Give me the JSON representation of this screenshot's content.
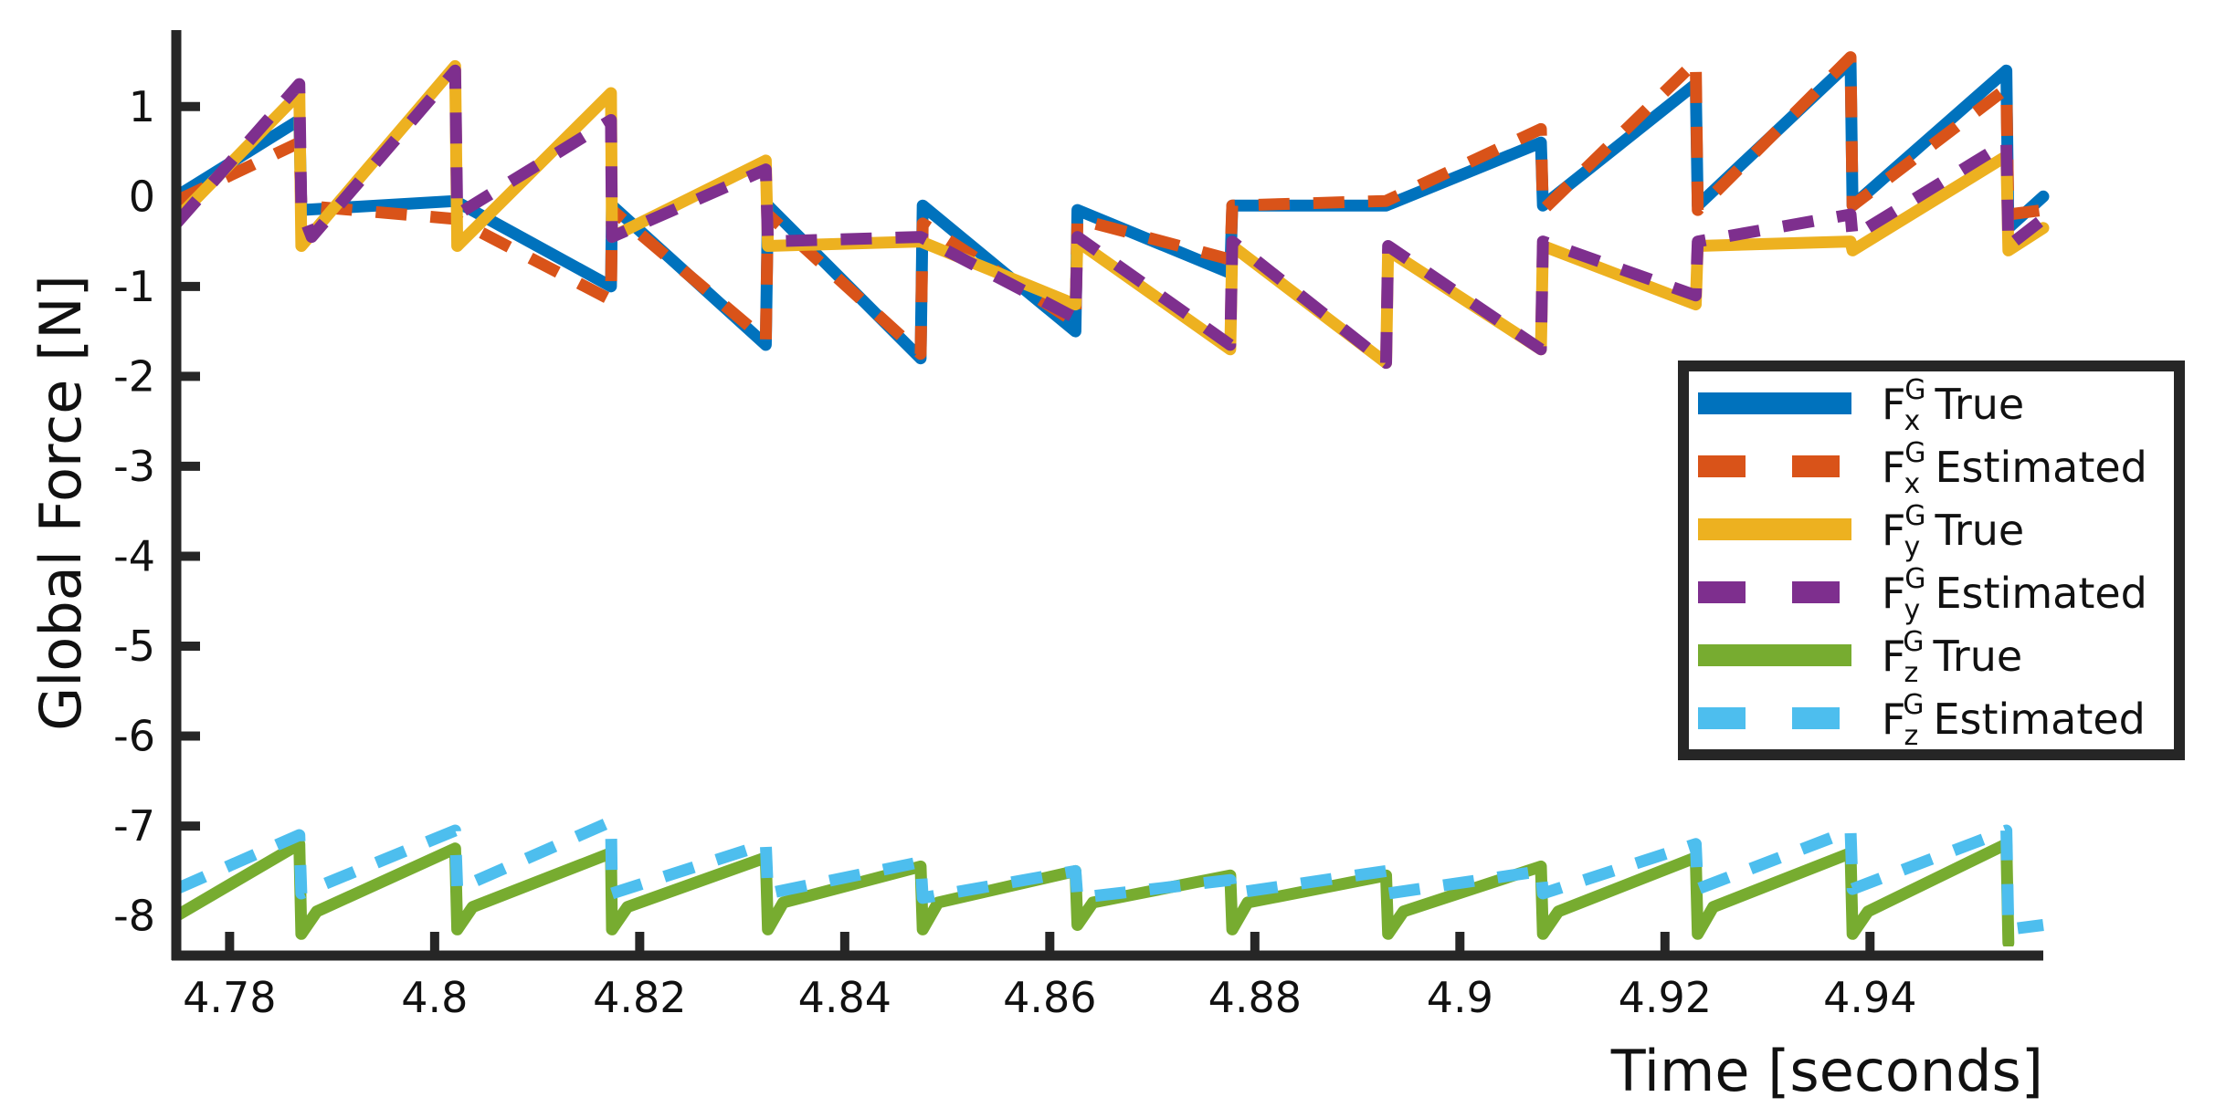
{
  "chart_data": {
    "type": "line",
    "title": "",
    "xlabel": "Time [seconds]",
    "ylabel": "Global Force [N]",
    "xlim": [
      4.7748,
      4.9569
    ],
    "ylim": [
      -8.44,
      1.85
    ],
    "grid": false,
    "legend_position": "right, inside (middle)",
    "x_ticks": [
      4.78,
      4.8,
      4.82,
      4.84,
      4.86,
      4.88,
      4.9,
      4.92,
      4.94
    ],
    "x_tick_labels": [
      "4.78",
      "4.8",
      "4.82",
      "4.84",
      "4.86",
      "4.88",
      "4.9",
      "4.92",
      "4.94"
    ],
    "y_ticks": [
      1,
      0,
      -1,
      -2,
      -3,
      -4,
      -5,
      -6,
      -7,
      -8
    ],
    "y_tick_labels": [
      "1",
      "0",
      "-1",
      "-2",
      "-3",
      "-4",
      "-5",
      "-6",
      "-7",
      "-8"
    ],
    "series": [
      {
        "name": "F_x^G True",
        "legend_main": "F",
        "legend_sup": "G",
        "legend_sub": "x",
        "legend_suffix": "True",
        "color": "#0072BD",
        "style": "solid",
        "points": [
          [
            4.7748,
            0.0
          ],
          [
            4.7868,
            0.85
          ],
          [
            4.787,
            -0.15
          ],
          [
            4.802,
            -0.05
          ],
          [
            4.8172,
            -1.0
          ],
          [
            4.8173,
            -0.1
          ],
          [
            4.8323,
            -1.65
          ],
          [
            4.8325,
            -0.1
          ],
          [
            4.8474,
            -1.8
          ],
          [
            4.8476,
            -0.1
          ],
          [
            4.8625,
            -1.5
          ],
          [
            4.8627,
            -0.15
          ],
          [
            4.8776,
            -0.85
          ],
          [
            4.8778,
            -0.1
          ],
          [
            4.8928,
            -0.1
          ],
          [
            4.9079,
            0.6
          ],
          [
            4.9081,
            -0.1
          ],
          [
            4.923,
            1.25
          ],
          [
            4.9232,
            -0.1
          ],
          [
            4.9381,
            1.5
          ],
          [
            4.9383,
            -0.1
          ],
          [
            4.9533,
            1.4
          ],
          [
            4.9535,
            -0.35
          ],
          [
            4.9569,
            0.0
          ]
        ]
      },
      {
        "name": "F_x^G Estimated",
        "legend_main": "F",
        "legend_sup": "G",
        "legend_sub": "x",
        "legend_suffix": "Estimated",
        "color": "#D95319",
        "style": "dashed",
        "points": [
          [
            4.7748,
            -0.05
          ],
          [
            4.7868,
            0.6
          ],
          [
            4.787,
            -0.1
          ],
          [
            4.802,
            -0.25
          ],
          [
            4.8172,
            -1.15
          ],
          [
            4.8173,
            -0.15
          ],
          [
            4.8323,
            -1.6
          ],
          [
            4.8325,
            -0.2
          ],
          [
            4.8474,
            -1.75
          ],
          [
            4.8476,
            -0.3
          ],
          [
            4.8625,
            -1.4
          ],
          [
            4.8627,
            -0.25
          ],
          [
            4.8776,
            -0.7
          ],
          [
            4.8778,
            -0.1
          ],
          [
            4.8928,
            -0.05
          ],
          [
            4.9079,
            0.75
          ],
          [
            4.9081,
            -0.15
          ],
          [
            4.923,
            1.5
          ],
          [
            4.9232,
            -0.15
          ],
          [
            4.9381,
            1.55
          ],
          [
            4.9383,
            -0.1
          ],
          [
            4.9533,
            1.2
          ],
          [
            4.9535,
            -0.2
          ],
          [
            4.9569,
            -0.15
          ]
        ]
      },
      {
        "name": "F_y^G True",
        "legend_main": "F",
        "legend_sup": "G",
        "legend_sub": "y",
        "legend_suffix": "True",
        "color": "#EDB120",
        "style": "solid",
        "points": [
          [
            4.7748,
            -0.25
          ],
          [
            4.7868,
            1.15
          ],
          [
            4.787,
            -0.55
          ],
          [
            4.802,
            1.45
          ],
          [
            4.8022,
            -0.55
          ],
          [
            4.8172,
            1.15
          ],
          [
            4.8173,
            -0.45
          ],
          [
            4.8323,
            0.4
          ],
          [
            4.8325,
            -0.55
          ],
          [
            4.8474,
            -0.5
          ],
          [
            4.8625,
            -1.2
          ],
          [
            4.8627,
            -0.5
          ],
          [
            4.8776,
            -1.7
          ],
          [
            4.8778,
            -0.55
          ],
          [
            4.8928,
            -1.85
          ],
          [
            4.893,
            -0.6
          ],
          [
            4.9079,
            -1.7
          ],
          [
            4.9081,
            -0.55
          ],
          [
            4.923,
            -1.2
          ],
          [
            4.9232,
            -0.55
          ],
          [
            4.9381,
            -0.5
          ],
          [
            4.9383,
            -0.6
          ],
          [
            4.9533,
            0.45
          ],
          [
            4.9535,
            -0.6
          ],
          [
            4.9569,
            -0.35
          ]
        ]
      },
      {
        "name": "F_y^G Estimated",
        "legend_main": "F",
        "legend_sup": "G",
        "legend_sub": "y",
        "legend_suffix": "Estimated",
        "color": "#7E2F8E",
        "style": "dashed",
        "points": [
          [
            4.7748,
            -0.3
          ],
          [
            4.7868,
            1.25
          ],
          [
            4.787,
            -0.15
          ],
          [
            4.788,
            -0.45
          ],
          [
            4.802,
            1.4
          ],
          [
            4.8022,
            -0.2
          ],
          [
            4.8172,
            0.85
          ],
          [
            4.8173,
            -0.45
          ],
          [
            4.8323,
            0.3
          ],
          [
            4.8325,
            -0.5
          ],
          [
            4.8474,
            -0.45
          ],
          [
            4.8625,
            -1.35
          ],
          [
            4.8627,
            -0.45
          ],
          [
            4.8776,
            -1.65
          ],
          [
            4.8778,
            -0.5
          ],
          [
            4.8928,
            -1.85
          ],
          [
            4.893,
            -0.55
          ],
          [
            4.9079,
            -1.7
          ],
          [
            4.9081,
            -0.5
          ],
          [
            4.923,
            -1.1
          ],
          [
            4.9232,
            -0.5
          ],
          [
            4.9381,
            -0.2
          ],
          [
            4.9383,
            -0.45
          ],
          [
            4.9533,
            0.6
          ],
          [
            4.9535,
            -0.55
          ],
          [
            4.9569,
            -0.25
          ]
        ]
      },
      {
        "name": "F_z^G True",
        "legend_main": "F",
        "legend_sup": "G",
        "legend_sub": "z",
        "legend_suffix": "True",
        "color": "#77AC30",
        "style": "solid",
        "points": [
          [
            4.7748,
            -8.0
          ],
          [
            4.7868,
            -7.2
          ],
          [
            4.787,
            -8.2
          ],
          [
            4.7885,
            -7.95
          ],
          [
            4.802,
            -7.25
          ],
          [
            4.8022,
            -8.15
          ],
          [
            4.8037,
            -7.9
          ],
          [
            4.8172,
            -7.3
          ],
          [
            4.8173,
            -8.15
          ],
          [
            4.8188,
            -7.9
          ],
          [
            4.8323,
            -7.35
          ],
          [
            4.8325,
            -8.15
          ],
          [
            4.834,
            -7.85
          ],
          [
            4.8474,
            -7.45
          ],
          [
            4.8476,
            -8.15
          ],
          [
            4.8491,
            -7.85
          ],
          [
            4.8625,
            -7.5
          ],
          [
            4.8627,
            -8.1
          ],
          [
            4.8642,
            -7.85
          ],
          [
            4.8776,
            -7.55
          ],
          [
            4.8778,
            -8.15
          ],
          [
            4.8793,
            -7.85
          ],
          [
            4.8928,
            -7.55
          ],
          [
            4.893,
            -8.2
          ],
          [
            4.8945,
            -7.95
          ],
          [
            4.9079,
            -7.45
          ],
          [
            4.9081,
            -8.2
          ],
          [
            4.9096,
            -7.95
          ],
          [
            4.923,
            -7.35
          ],
          [
            4.9232,
            -8.2
          ],
          [
            4.9247,
            -7.9
          ],
          [
            4.9381,
            -7.3
          ],
          [
            4.9383,
            -8.2
          ],
          [
            4.9398,
            -7.95
          ],
          [
            4.9533,
            -7.2
          ],
          [
            4.9535,
            -8.3
          ]
        ]
      },
      {
        "name": "F_z^G Estimated",
        "legend_main": "F",
        "legend_sup": "G",
        "legend_sub": "z",
        "legend_suffix": "Estimated",
        "color": "#4DBEEE",
        "style": "dashed",
        "points": [
          [
            4.7748,
            -7.7
          ],
          [
            4.7868,
            -7.1
          ],
          [
            4.787,
            -7.75
          ],
          [
            4.802,
            -7.05
          ],
          [
            4.8022,
            -7.7
          ],
          [
            4.8172,
            -6.95
          ],
          [
            4.8173,
            -7.75
          ],
          [
            4.8323,
            -7.2
          ],
          [
            4.8325,
            -7.75
          ],
          [
            4.8474,
            -7.4
          ],
          [
            4.8476,
            -7.8
          ],
          [
            4.8625,
            -7.5
          ],
          [
            4.8627,
            -7.8
          ],
          [
            4.8776,
            -7.6
          ],
          [
            4.8778,
            -7.75
          ],
          [
            4.8928,
            -7.5
          ],
          [
            4.893,
            -7.75
          ],
          [
            4.9079,
            -7.5
          ],
          [
            4.9081,
            -7.75
          ],
          [
            4.923,
            -7.2
          ],
          [
            4.9232,
            -7.7
          ],
          [
            4.9381,
            -7.05
          ],
          [
            4.9383,
            -7.7
          ],
          [
            4.9533,
            -7.05
          ],
          [
            4.9535,
            -8.15
          ],
          [
            4.9569,
            -8.1
          ]
        ]
      }
    ]
  },
  "axes": {
    "x_title": "Time [seconds]",
    "y_title": "Global Force [N]",
    "axis_color": "#262626"
  },
  "legend": {
    "items": [
      {
        "main": "F",
        "sup": "G",
        "sub": "x",
        "suffix": "True"
      },
      {
        "main": "F",
        "sup": "G",
        "sub": "x",
        "suffix": "Estimated"
      },
      {
        "main": "F",
        "sup": "G",
        "sub": "y",
        "suffix": "True"
      },
      {
        "main": "F",
        "sup": "G",
        "sub": "y",
        "suffix": "Estimated"
      },
      {
        "main": "F",
        "sup": "G",
        "sub": "z",
        "suffix": "True"
      },
      {
        "main": "F",
        "sup": "G",
        "sub": "z",
        "suffix": "Estimated"
      }
    ]
  }
}
